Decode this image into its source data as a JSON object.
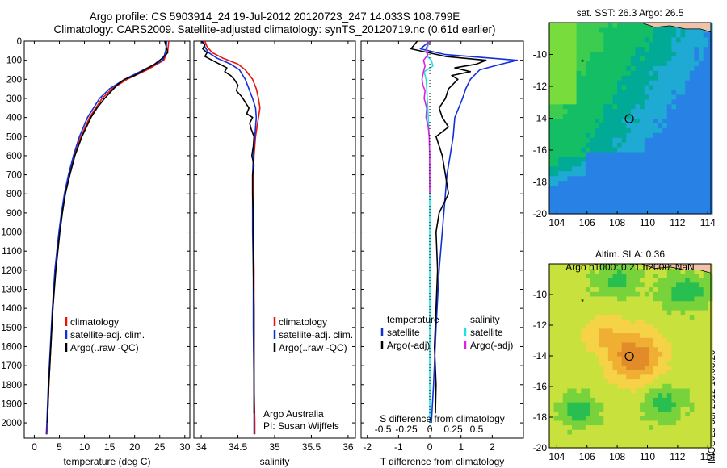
{
  "header": {
    "line1": "Argo profile: CS 5903914_24 19-Jul-2012 20120723_247 14.033S 108.799E",
    "line2": "Climatology: CARS2009. Satellite-adjusted climatology: synTS_20120719.nc (0.61d earlier)"
  },
  "side_label": "IMOS 25-Jul-2012 10:03:20",
  "colors": {
    "climatology": "#e8140c",
    "satellite": "#1230d8",
    "argo": "#000000",
    "salinity_sat": "#22e0e0",
    "salinity_argo": "#e020e0"
  },
  "chart_data": [
    {
      "id": "temperature",
      "type": "line",
      "xlabel": "temperature (deg C)",
      "ylabel": "",
      "xlim": [
        -2,
        31
      ],
      "ylim": [
        2080,
        0
      ],
      "xticks": [
        0,
        5,
        10,
        15,
        20,
        25,
        30
      ],
      "yticks": [
        0,
        100,
        200,
        300,
        400,
        500,
        600,
        700,
        800,
        900,
        1000,
        1100,
        1200,
        1300,
        1400,
        1500,
        1600,
        1700,
        1800,
        1900,
        2000
      ],
      "legend": [
        "climatology",
        "satellite-adj. clim.",
        "Argo(..raw -QC)"
      ],
      "legend_position": "lower-middle",
      "series": [
        {
          "name": "climatology",
          "color": "#e8140c",
          "depth": [
            0,
            50,
            100,
            150,
            200,
            250,
            300,
            400,
            500,
            600,
            700,
            800,
            900,
            1000,
            1200,
            1400,
            1600,
            1800,
            2000,
            2060
          ],
          "values": [
            26.8,
            26.6,
            25.8,
            22.5,
            18.5,
            15.5,
            13.5,
            11.0,
            9.3,
            8.0,
            7.0,
            6.1,
            5.5,
            5.0,
            4.2,
            3.7,
            3.3,
            2.9,
            2.6,
            2.5
          ]
        },
        {
          "name": "satellite-adj. clim.",
          "color": "#1230d8",
          "depth": [
            0,
            50,
            100,
            150,
            200,
            250,
            300,
            400,
            500,
            600,
            700,
            800,
            900,
            1000,
            1200,
            1400,
            1600,
            1800,
            2000,
            2060
          ],
          "values": [
            26.4,
            26.2,
            25.6,
            21.8,
            18.0,
            15.0,
            13.0,
            10.6,
            9.0,
            7.8,
            6.8,
            6.0,
            5.4,
            4.9,
            4.1,
            3.6,
            3.2,
            2.8,
            2.5,
            2.4
          ]
        },
        {
          "name": "Argo(..raw -QC)",
          "color": "#000000",
          "depth": [
            0,
            30,
            60,
            90,
            120,
            150,
            180,
            200,
            230,
            250,
            300,
            350,
            400,
            500,
            600,
            700,
            800,
            900,
            1000,
            1200,
            1400,
            1600,
            1800,
            2000
          ],
          "values": [
            26.0,
            26.3,
            26.6,
            25.5,
            24.0,
            22.0,
            20.0,
            18.0,
            16.5,
            15.8,
            14.0,
            12.5,
            11.3,
            9.5,
            8.1,
            7.1,
            6.2,
            5.6,
            5.1,
            4.3,
            3.7,
            3.3,
            2.9,
            2.6
          ]
        }
      ]
    },
    {
      "id": "salinity",
      "type": "line",
      "xlabel": "salinity",
      "ylabel": "",
      "xlim": [
        33.9,
        36.1
      ],
      "ylim": [
        2080,
        0
      ],
      "xticks": [
        34,
        34.5,
        35,
        35.5,
        36
      ],
      "legend": [
        "climatology",
        "satellite-adj. clim.",
        "Argo(..raw -QC)"
      ],
      "legend_position": "lower-right",
      "annotations": [
        "Argo Australia",
        "PI: Susan Wijffels"
      ],
      "series": [
        {
          "name": "climatology",
          "color": "#e8140c",
          "depth": [
            0,
            30,
            60,
            90,
            120,
            150,
            200,
            250,
            300,
            350,
            400,
            500,
            600,
            700,
            800,
            1000,
            1200,
            1500,
            1800,
            2000,
            2060
          ],
          "values": [
            34.05,
            34.08,
            34.15,
            34.3,
            34.5,
            34.6,
            34.7,
            34.75,
            34.78,
            34.8,
            34.78,
            34.74,
            34.72,
            34.71,
            34.71,
            34.71,
            34.72,
            34.72,
            34.72,
            34.73,
            34.73
          ]
        },
        {
          "name": "satellite-adj. clim.",
          "color": "#1230d8",
          "depth": [
            0,
            30,
            60,
            90,
            120,
            150,
            200,
            250,
            300,
            350,
            400,
            500,
            600,
            700,
            800,
            1000,
            1200,
            1500,
            1800,
            2000,
            2060
          ],
          "values": [
            34.03,
            34.05,
            34.1,
            34.22,
            34.4,
            34.52,
            34.6,
            34.65,
            34.7,
            34.74,
            34.75,
            34.73,
            34.71,
            34.7,
            34.7,
            34.7,
            34.71,
            34.71,
            34.72,
            34.72,
            34.72
          ]
        },
        {
          "name": "Argo(..raw -QC)",
          "color": "#000000",
          "depth": [
            0,
            20,
            40,
            60,
            80,
            100,
            120,
            140,
            160,
            180,
            200,
            230,
            260,
            290,
            320,
            350,
            380,
            400,
            430,
            460,
            500,
            550,
            600,
            650,
            700,
            800,
            900,
            1000,
            1200,
            1400,
            1600,
            1800,
            1950
          ],
          "values": [
            34.0,
            34.05,
            34.02,
            34.08,
            34.05,
            34.15,
            34.25,
            34.35,
            34.32,
            34.4,
            34.45,
            34.5,
            34.48,
            34.55,
            34.6,
            34.65,
            34.62,
            34.7,
            34.66,
            34.68,
            34.72,
            34.71,
            34.69,
            34.72,
            34.7,
            34.7,
            34.71,
            34.71,
            34.71,
            34.72,
            34.72,
            34.72,
            34.72
          ]
        }
      ]
    },
    {
      "id": "difference",
      "type": "line",
      "xlabel": "T difference from climatology",
      "xlabel_top": "S difference from climatology",
      "xlim": [
        -2.2,
        3.0
      ],
      "ylim": [
        2080,
        0
      ],
      "xticks": [
        -2,
        -1,
        0,
        1,
        2
      ],
      "top_tick_labels": [
        "-0.5",
        "-0.25",
        "0",
        "0.25",
        "0.5"
      ],
      "legend_groups": [
        {
          "title": "temperature",
          "entries": [
            "satellite",
            "Argo(-adj)"
          ]
        },
        {
          "title": "salinity",
          "entries": [
            "satellite",
            "Argo(-adj)"
          ]
        }
      ],
      "legend_position": "lower-middle",
      "series": [
        {
          "name": "temperature satellite",
          "color": "#1230d8",
          "depth": [
            0,
            40,
            70,
            100,
            120,
            150,
            200,
            250,
            300,
            400,
            500,
            600,
            700,
            800,
            1000,
            1200,
            1500,
            1800,
            2000
          ],
          "values": [
            0.0,
            -0.3,
            0.5,
            2.8,
            2.3,
            1.6,
            1.3,
            1.15,
            1.05,
            0.8,
            0.75,
            0.65,
            0.55,
            0.5,
            0.4,
            0.3,
            0.2,
            0.12,
            0.05
          ]
        },
        {
          "name": "temperature Argo(-adj)",
          "color": "#000000",
          "depth": [
            0,
            40,
            80,
            100,
            120,
            140,
            160,
            180,
            200,
            250,
            300,
            350,
            400,
            450,
            500,
            600,
            700,
            800,
            900,
            1000,
            1200,
            1400,
            1600,
            1800,
            1950
          ],
          "values": [
            -0.4,
            -0.6,
            0.5,
            1.8,
            1.5,
            0.8,
            1.3,
            0.7,
            0.9,
            0.6,
            0.5,
            0.3,
            0.4,
            0.6,
            0.2,
            0.4,
            0.5,
            0.6,
            0.3,
            0.2,
            0.25,
            0.2,
            0.15,
            0.2,
            0.18
          ]
        },
        {
          "name": "salinity satellite",
          "color": "#22e0e0",
          "depth": [
            0,
            50,
            80,
            100,
            130,
            160,
            200,
            250,
            300,
            400,
            500,
            600,
            700,
            800,
            1000,
            1200,
            1500,
            1800,
            2000
          ],
          "values": [
            -0.02,
            -0.1,
            -0.08,
            0.05,
            0.1,
            -0.18,
            -0.12,
            -0.1,
            -0.08,
            -0.05,
            -0.02,
            -0.01,
            -0.01,
            0.0,
            0.0,
            0.0,
            0.0,
            0.0,
            0.0
          ]
        },
        {
          "name": "salinity Argo(-adj)",
          "color": "#e020e0",
          "depth": [
            0,
            40,
            70,
            100,
            130,
            160,
            200,
            230,
            260,
            300,
            350,
            400,
            450,
            500,
            550,
            600,
            700,
            800
          ],
          "values": [
            -0.03,
            -0.12,
            -0.06,
            -0.2,
            -0.15,
            -0.2,
            -0.25,
            -0.22,
            -0.15,
            -0.18,
            -0.1,
            -0.12,
            -0.05,
            -0.02,
            -0.01,
            0.0,
            0.0,
            0.0
          ]
        }
      ]
    },
    {
      "id": "sst_map",
      "type": "heatmap",
      "title": "sat. SST: 26.3 Argo: 26.5",
      "xlim": [
        103.5,
        114.2
      ],
      "ylim": [
        -20,
        -8
      ],
      "xticks": [
        104,
        106,
        108,
        110,
        112,
        114
      ],
      "yticks": [
        -10,
        -12,
        -14,
        -16,
        -18,
        -20
      ],
      "marker": {
        "lon": 108.8,
        "lat": -14.03
      }
    },
    {
      "id": "sla_map",
      "type": "heatmap",
      "title": "Altim. SLA: 0.36",
      "subtitle": "Argo h1000: 0.21 h2000: NaN",
      "xlim": [
        103.5,
        114.2
      ],
      "ylim": [
        -20,
        -8
      ],
      "xticks": [
        104,
        106,
        108,
        110,
        112,
        114
      ],
      "yticks": [
        -10,
        -12,
        -14,
        -16,
        -18,
        -20
      ],
      "marker": {
        "lon": 108.8,
        "lat": -14.03
      }
    }
  ]
}
